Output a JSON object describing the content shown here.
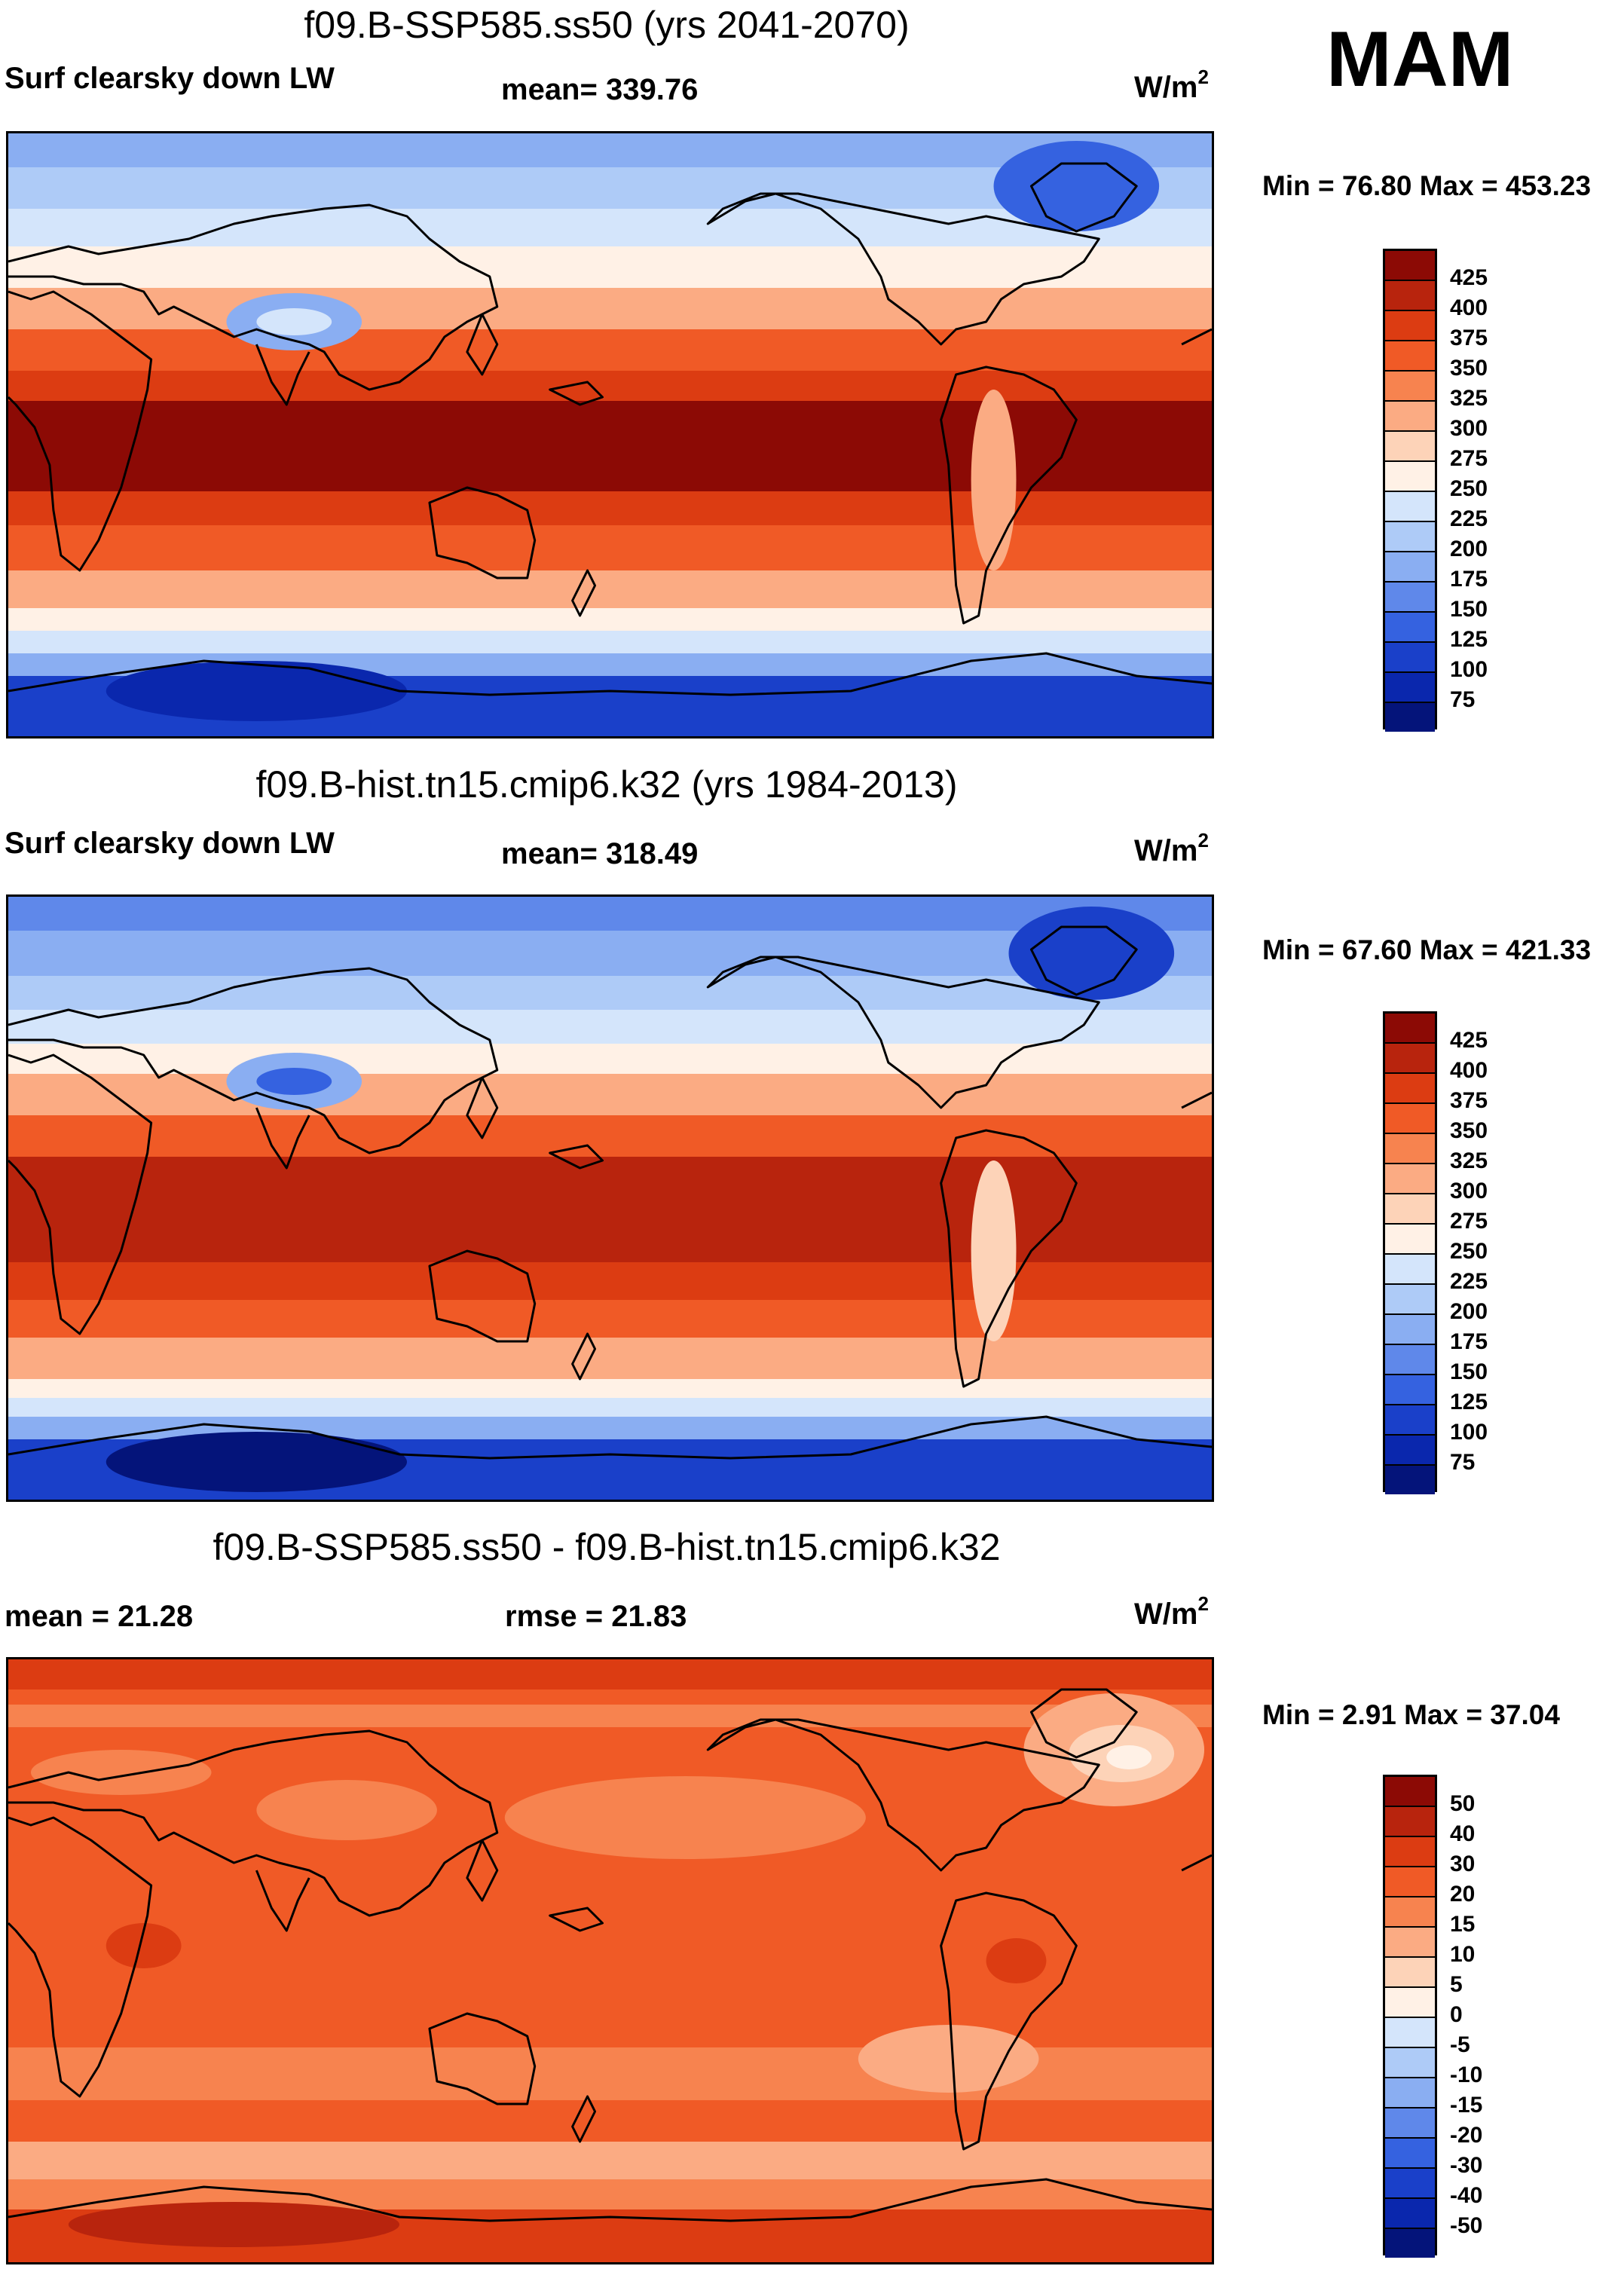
{
  "season": "MAM",
  "panels": [
    {
      "id": "future",
      "title": "f09.B-SSP585.ss50 (yrs 2041-2070)",
      "left_label": "Surf clearsky down LW",
      "center_label": "mean= 339.76",
      "units": "W/m",
      "units_exp": "2",
      "minmax": "Min =  76.80 Max = 453.23"
    },
    {
      "id": "hist",
      "title": "f09.B-hist.tn15.cmip6.k32 (yrs 1984-2013)",
      "left_label": "Surf clearsky down LW",
      "center_label": "mean= 318.49",
      "units": "W/m",
      "units_exp": "2",
      "minmax": "Min =  67.60 Max = 421.33"
    },
    {
      "id": "diff",
      "title": "f09.B-SSP585.ss50 - f09.B-hist.tn15.cmip6.k32",
      "left_label": "mean =  21.28",
      "center_label": "rmse =  21.83",
      "units": "W/m",
      "units_exp": "2",
      "minmax": "Min =   2.91 Max =  37.04"
    }
  ],
  "colorbar_abs": {
    "levels": [
      "425",
      "400",
      "375",
      "350",
      "325",
      "300",
      "275",
      "250",
      "225",
      "200",
      "175",
      "150",
      "125",
      "100",
      "75"
    ],
    "colors": [
      "#8c0a05",
      "#b8240d",
      "#dc3c12",
      "#f05a26",
      "#f7834f",
      "#fbab83",
      "#fdd3b8",
      "#fff1e6",
      "#d4e5fb",
      "#aecbf7",
      "#8aaef2",
      "#5f88ea",
      "#3562e0",
      "#1a40c9",
      "#0a27ad",
      "#04147a"
    ]
  },
  "colorbar_diff": {
    "levels": [
      "50",
      "40",
      "30",
      "20",
      "15",
      "10",
      "5",
      "0",
      "-5",
      "-10",
      "-15",
      "-20",
      "-30",
      "-40",
      "-50"
    ],
    "colors": [
      "#8c0a05",
      "#b8240d",
      "#dc3c12",
      "#f05a26",
      "#f7834f",
      "#fbab83",
      "#fdd3b8",
      "#fff1e6",
      "#d4e5fb",
      "#aecbf7",
      "#8aaef2",
      "#5f88ea",
      "#3562e0",
      "#1a40c9",
      "#0a27ad",
      "#04147a"
    ]
  },
  "chart_data": [
    {
      "type": "heatmap",
      "title": "f09.B-SSP585.ss50 (yrs 2041-2070)",
      "variable": "Surf clearsky down LW",
      "season": "MAM",
      "units": "W/m2",
      "mean": 339.76,
      "min": 76.8,
      "max": 453.23,
      "contour_levels": [
        75,
        100,
        125,
        150,
        175,
        200,
        225,
        250,
        275,
        300,
        325,
        350,
        375,
        400,
        425
      ],
      "zonal_profile": [
        {
          "lat": 90,
          "value": 170
        },
        {
          "lat": 75,
          "value": 200
        },
        {
          "lat": 60,
          "value": 250
        },
        {
          "lat": 45,
          "value": 300
        },
        {
          "lat": 30,
          "value": 360
        },
        {
          "lat": 15,
          "value": 420
        },
        {
          "lat": 0,
          "value": 430
        },
        {
          "lat": -15,
          "value": 420
        },
        {
          "lat": -30,
          "value": 360
        },
        {
          "lat": -45,
          "value": 300
        },
        {
          "lat": -60,
          "value": 240
        },
        {
          "lat": -75,
          "value": 120
        },
        {
          "lat": -90,
          "value": 90
        }
      ]
    },
    {
      "type": "heatmap",
      "title": "f09.B-hist.tn15.cmip6.k32 (yrs 1984-2013)",
      "variable": "Surf clearsky down LW",
      "season": "MAM",
      "units": "W/m2",
      "mean": 318.49,
      "min": 67.6,
      "max": 421.33,
      "contour_levels": [
        75,
        100,
        125,
        150,
        175,
        200,
        225,
        250,
        275,
        300,
        325,
        350,
        375,
        400,
        425
      ],
      "zonal_profile": [
        {
          "lat": 90,
          "value": 160
        },
        {
          "lat": 75,
          "value": 180
        },
        {
          "lat": 60,
          "value": 230
        },
        {
          "lat": 45,
          "value": 280
        },
        {
          "lat": 30,
          "value": 340
        },
        {
          "lat": 15,
          "value": 395
        },
        {
          "lat": 0,
          "value": 405
        },
        {
          "lat": -15,
          "value": 395
        },
        {
          "lat": -30,
          "value": 340
        },
        {
          "lat": -45,
          "value": 280
        },
        {
          "lat": -60,
          "value": 220
        },
        {
          "lat": -75,
          "value": 105
        },
        {
          "lat": -90,
          "value": 80
        }
      ]
    },
    {
      "type": "heatmap",
      "title": "f09.B-SSP585.ss50 - f09.B-hist.tn15.cmip6.k32",
      "variable": "Surf clearsky down LW difference",
      "season": "MAM",
      "units": "W/m2",
      "mean": 21.28,
      "rmse": 21.83,
      "min": 2.91,
      "max": 37.04,
      "contour_levels": [
        -50,
        -40,
        -30,
        -20,
        -15,
        -10,
        -5,
        0,
        5,
        10,
        15,
        20,
        30,
        40,
        50
      ],
      "zonal_profile": [
        {
          "lat": 90,
          "value": 22
        },
        {
          "lat": 75,
          "value": 18
        },
        {
          "lat": 60,
          "value": 20
        },
        {
          "lat": 45,
          "value": 22
        },
        {
          "lat": 30,
          "value": 20
        },
        {
          "lat": 15,
          "value": 22
        },
        {
          "lat": 0,
          "value": 24
        },
        {
          "lat": -15,
          "value": 22
        },
        {
          "lat": -30,
          "value": 18
        },
        {
          "lat": -45,
          "value": 21
        },
        {
          "lat": -60,
          "value": 16
        },
        {
          "lat": -75,
          "value": 25
        },
        {
          "lat": -90,
          "value": 24
        }
      ]
    }
  ]
}
